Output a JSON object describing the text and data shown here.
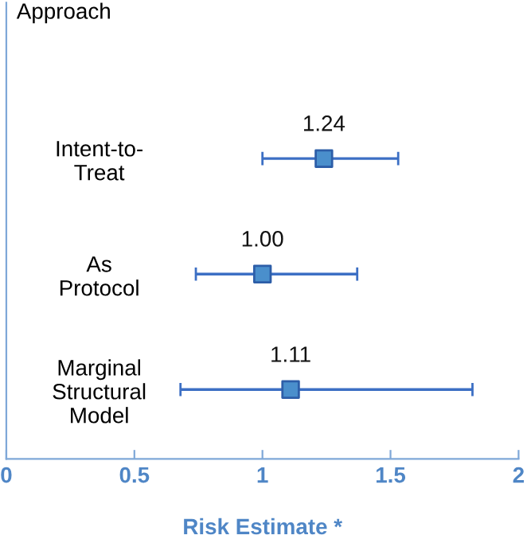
{
  "chart_data": {
    "type": "scatter",
    "orientation": "horizontal",
    "ylabel": "Approach",
    "xlabel": "Risk Estimate *",
    "categories": [
      "Intent-to-Treat",
      "As Protocol",
      "Marginal Structural Model"
    ],
    "series": [
      {
        "color": "#4a8fcc",
        "values": [
          1.24,
          1.0,
          1.11
        ],
        "errors": [
          [
            1.0,
            1.53
          ],
          [
            0.74,
            1.37
          ],
          [
            0.68,
            1.82
          ]
        ],
        "value_labels": [
          "1.24",
          "1.00",
          "1.11"
        ]
      }
    ],
    "marker": "square",
    "grid": false,
    "legend": false,
    "xlim": [
      0,
      2
    ],
    "xticks": [
      0,
      0.5,
      1,
      1.5,
      2
    ]
  }
}
